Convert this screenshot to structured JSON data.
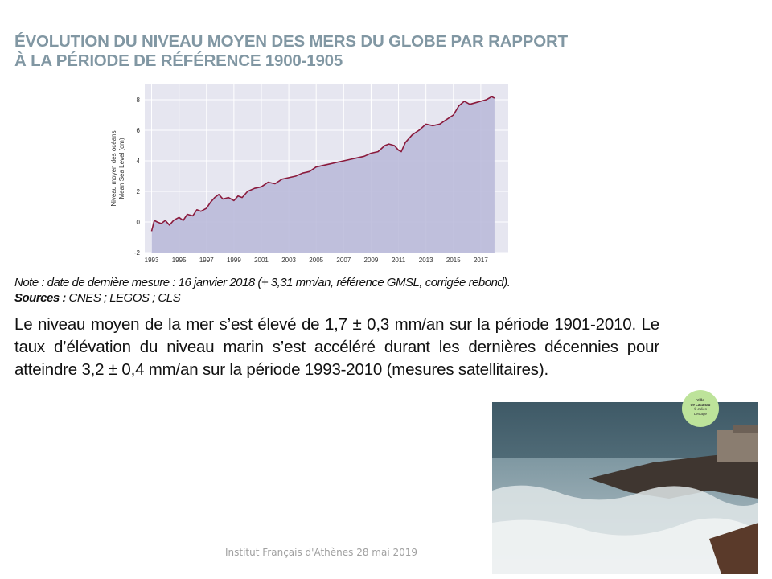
{
  "title": {
    "line1": "ÉVOLUTION DU NIVEAU MOYEN DES MERS DU GLOBE PAR RAPPORT",
    "line2": "À LA PÉRIODE DE RÉFÉRENCE 1900-1905"
  },
  "note": {
    "text": "Note : date de dernière mesure : 16 janvier 2018 (+ 3,31 mm/an, référence GMSL, corrigée rebond).",
    "sources_label": "Sources :",
    "sources_text": " CNES ; LEGOS ; CLS"
  },
  "body_text": "Le niveau moyen de la mer s’est élevé de 1,7 ± 0,3 mm/an sur la période 1901-2010. Le taux d’élévation du niveau marin s’est accéléré durant les dernières décennies pour atteindre 3,2 ± 0,4 mm/an sur la période 1993-2010 (mesures satellitaires).",
  "photo_badge": {
    "line1": "Ville",
    "line2": "de Lacanau",
    "line3": "© Julien",
    "line4": "Lestage"
  },
  "footer": "Institut Français d'Athènes 28 mai 2019",
  "colors": {
    "title": "#8197a3",
    "plot_bg": "#e6e6f0",
    "area_fill": "#b7b7d8",
    "line": "#8a1a3c"
  },
  "chart_data": {
    "type": "area",
    "ylabel": "Niveau moyen des océans",
    "ylabel2": "Mean Sea Level (cm)",
    "xlim": [
      1992.5,
      2019.0
    ],
    "ylim": [
      -2,
      9
    ],
    "xticks": [
      1993,
      1995,
      1997,
      1999,
      2001,
      2003,
      2005,
      2007,
      2009,
      2011,
      2013,
      2015,
      2017
    ],
    "yticks": [
      -2,
      0,
      2,
      4,
      6,
      8
    ],
    "grid": true,
    "series": [
      {
        "x": [
          1993.0,
          1993.2,
          1993.4,
          1993.7,
          1994.0,
          1994.3,
          1994.6,
          1995.0,
          1995.3,
          1995.6,
          1996.0,
          1996.3,
          1996.6,
          1997.0,
          1997.3,
          1997.6,
          1997.9,
          1998.2,
          1998.6,
          1999.0,
          1999.3,
          1999.6,
          2000.0,
          2000.5,
          2001.0,
          2001.5,
          2002.0,
          2002.5,
          2003.0,
          2003.5,
          2004.0,
          2004.5,
          2005.0,
          2005.5,
          2006.0,
          2006.5,
          2007.0,
          2007.5,
          2008.0,
          2008.5,
          2009.0,
          2009.5,
          2010.0,
          2010.3,
          2010.7,
          2011.0,
          2011.2,
          2011.5,
          2012.0,
          2012.5,
          2013.0,
          2013.5,
          2014.0,
          2014.5,
          2015.0,
          2015.4,
          2015.8,
          2016.2,
          2016.6,
          2017.0,
          2017.4,
          2017.8,
          2018.0
        ],
        "y": [
          -0.6,
          0.1,
          0.0,
          -0.1,
          0.1,
          -0.2,
          0.1,
          0.3,
          0.1,
          0.5,
          0.4,
          0.8,
          0.7,
          0.9,
          1.3,
          1.6,
          1.8,
          1.5,
          1.6,
          1.4,
          1.7,
          1.6,
          2.0,
          2.2,
          2.3,
          2.6,
          2.5,
          2.8,
          2.9,
          3.0,
          3.2,
          3.3,
          3.6,
          3.7,
          3.8,
          3.9,
          4.0,
          4.1,
          4.2,
          4.3,
          4.5,
          4.6,
          5.0,
          5.1,
          5.0,
          4.7,
          4.6,
          5.2,
          5.7,
          6.0,
          6.4,
          6.3,
          6.4,
          6.7,
          7.0,
          7.6,
          7.9,
          7.7,
          7.8,
          7.9,
          8.0,
          8.2,
          8.1
        ]
      }
    ]
  }
}
